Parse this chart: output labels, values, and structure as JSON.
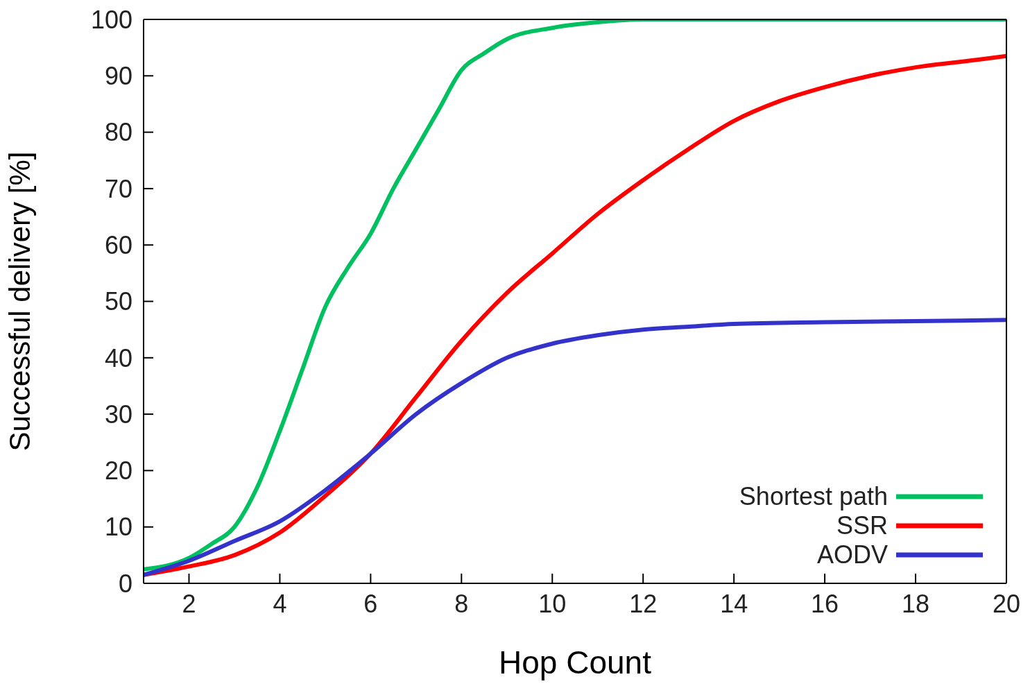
{
  "chart_data": {
    "type": "line",
    "xlabel": "Hop Count",
    "ylabel": "Successful delivery [%]",
    "xlim": [
      1,
      20
    ],
    "xticks": [
      2,
      4,
      6,
      8,
      10,
      12,
      14,
      16,
      18,
      20
    ],
    "ylim": [
      0,
      100
    ],
    "yticks": [
      0,
      10,
      20,
      30,
      40,
      50,
      60,
      70,
      80,
      90,
      100
    ],
    "legend": "bottom right",
    "marker": "none",
    "line_style": "solid",
    "series": [
      {
        "name": "Shortest path",
        "color": "#00c060",
        "x": [
          1,
          2,
          2.5,
          3,
          3.5,
          4,
          4.5,
          5,
          5.5,
          6,
          6.5,
          7,
          7.5,
          8,
          8.5,
          9,
          10,
          11,
          12,
          14,
          16,
          18,
          20
        ],
        "values": [
          2.5,
          4.5,
          7,
          10,
          17,
          27,
          38,
          49,
          56,
          62,
          70,
          77,
          84,
          91,
          94,
          96.5,
          98.5,
          99.5,
          100,
          100,
          100,
          100,
          100
        ]
      },
      {
        "name": "SSR",
        "color": "#ff0000",
        "x": [
          1,
          2,
          3,
          4,
          5,
          6,
          7,
          8,
          9,
          10,
          11,
          12,
          13,
          14,
          15,
          16,
          17,
          18,
          19,
          20
        ],
        "values": [
          1.5,
          3,
          5,
          9,
          15.5,
          23,
          33,
          43,
          51.5,
          58.5,
          65.5,
          71.5,
          77,
          82,
          85.5,
          88,
          90,
          91.5,
          92.5,
          93.5
        ]
      },
      {
        "name": "AODV",
        "color": "#3333cc",
        "x": [
          1,
          2,
          3,
          4,
          5,
          6,
          7,
          8,
          9,
          10,
          11,
          12,
          13,
          14,
          16,
          18,
          20
        ],
        "values": [
          1.5,
          4,
          7.5,
          11,
          16.5,
          23,
          30,
          35.5,
          40,
          42.5,
          44,
          45,
          45.5,
          46,
          46.3,
          46.5,
          46.7
        ]
      }
    ]
  }
}
